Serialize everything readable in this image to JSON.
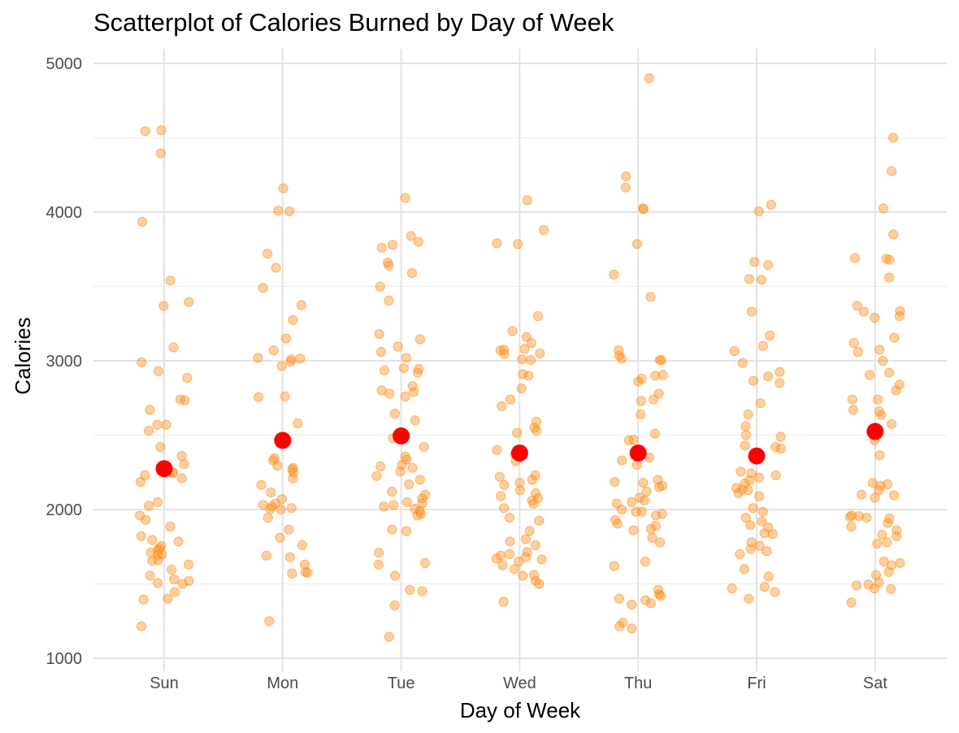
{
  "chart_data": {
    "type": "scatter",
    "title": "Scatterplot of Calories Burned by Day of Week",
    "xlabel": "Day of Week",
    "ylabel": "Calories",
    "categories": [
      "Sun",
      "Mon",
      "Tue",
      "Wed",
      "Thu",
      "Fri",
      "Sat"
    ],
    "ylim": [
      950,
      5050
    ],
    "yticks": [
      1000,
      2000,
      3000,
      4000,
      5000
    ],
    "grid": true,
    "legend": "none",
    "colors": {
      "points": "#ff8c1a",
      "means": "#ff0000"
    },
    "means": [
      2275,
      2465,
      2495,
      2380,
      2380,
      2360,
      2525
    ],
    "series": [
      {
        "category": "Sun",
        "values": [
          4550,
          4545,
          4395,
          3935,
          3540,
          3395,
          3370,
          3090,
          2990,
          2930,
          2885,
          2740,
          2735,
          2670,
          2570,
          2570,
          2530,
          2420,
          2360,
          2305,
          2250,
          2245,
          2230,
          2210,
          2185,
          2050,
          2025,
          1960,
          1930,
          1885,
          1820,
          1795,
          1785,
          1755,
          1740,
          1725,
          1710,
          1700,
          1695,
          1660,
          1655,
          1630,
          1595,
          1555,
          1530,
          1520,
          1505,
          1500,
          1445,
          1400,
          1395,
          1215
        ]
      },
      {
        "category": "Mon",
        "values": [
          4160,
          4010,
          4005,
          3720,
          3625,
          3490,
          3375,
          3275,
          3150,
          3070,
          3020,
          3015,
          3010,
          2995,
          2965,
          2760,
          2755,
          2580,
          2345,
          2330,
          2295,
          2280,
          2270,
          2250,
          2210,
          2165,
          2115,
          2070,
          2040,
          2030,
          2020,
          2010,
          2005,
          2000,
          1945,
          1865,
          1810,
          1760,
          1690,
          1680,
          1630,
          1580,
          1575,
          1570,
          1250
        ]
      },
      {
        "category": "Tue",
        "values": [
          4095,
          3840,
          3800,
          3780,
          3760,
          3660,
          3640,
          3590,
          3500,
          3405,
          3180,
          3145,
          3095,
          3060,
          3020,
          2950,
          2945,
          2935,
          2920,
          2830,
          2800,
          2790,
          2780,
          2760,
          2645,
          2600,
          2480,
          2420,
          2355,
          2335,
          2300,
          2290,
          2280,
          2255,
          2225,
          2200,
          2170,
          2120,
          2100,
          2075,
          2050,
          2040,
          2030,
          2020,
          2005,
          1990,
          1970,
          1960,
          1865,
          1855,
          1710,
          1640,
          1630,
          1555,
          1460,
          1450,
          1355,
          1145
        ]
      },
      {
        "category": "Wed",
        "values": [
          4080,
          3880,
          3790,
          3785,
          3300,
          3200,
          3160,
          3120,
          3080,
          3075,
          3070,
          3050,
          3045,
          3010,
          3005,
          2910,
          2900,
          2815,
          2740,
          2695,
          2590,
          2550,
          2530,
          2515,
          2400,
          2390,
          2370,
          2325,
          2230,
          2220,
          2200,
          2180,
          2165,
          2130,
          2110,
          2090,
          2075,
          2060,
          2040,
          2010,
          1945,
          1925,
          1855,
          1800,
          1785,
          1760,
          1715,
          1700,
          1690,
          1680,
          1670,
          1665,
          1650,
          1625,
          1600,
          1560,
          1555,
          1520,
          1500,
          1380
        ]
      },
      {
        "category": "Thu",
        "values": [
          4900,
          4240,
          4165,
          4025,
          4020,
          3785,
          3580,
          3430,
          3070,
          3035,
          3015,
          3005,
          3005,
          2905,
          2900,
          2880,
          2860,
          2780,
          2740,
          2730,
          2640,
          2510,
          2470,
          2465,
          2350,
          2330,
          2300,
          2200,
          2185,
          2180,
          2160,
          2150,
          2120,
          2080,
          2060,
          2050,
          2040,
          2000,
          1985,
          1985,
          1970,
          1960,
          1930,
          1905,
          1890,
          1870,
          1860,
          1810,
          1780,
          1650,
          1620,
          1460,
          1430,
          1420,
          1400,
          1390,
          1370,
          1360,
          1240,
          1215,
          1200
        ]
      },
      {
        "category": "Fri",
        "values": [
          4050,
          4005,
          3665,
          3645,
          3550,
          3545,
          3330,
          3170,
          3100,
          3065,
          2985,
          2925,
          2895,
          2865,
          2850,
          2715,
          2640,
          2560,
          2500,
          2490,
          2430,
          2420,
          2410,
          2255,
          2245,
          2230,
          2215,
          2195,
          2175,
          2145,
          2135,
          2130,
          2110,
          2090,
          2010,
          1985,
          1945,
          1920,
          1895,
          1880,
          1840,
          1835,
          1780,
          1755,
          1735,
          1720,
          1700,
          1600,
          1550,
          1480,
          1470,
          1445,
          1400
        ]
      },
      {
        "category": "Sat",
        "values": [
          4500,
          4275,
          4025,
          3850,
          3690,
          3685,
          3680,
          3560,
          3370,
          3335,
          3330,
          3300,
          3290,
          3155,
          3120,
          3075,
          3060,
          3000,
          2920,
          2905,
          2840,
          2800,
          2740,
          2740,
          2670,
          2660,
          2635,
          2575,
          2465,
          2365,
          2180,
          2170,
          2160,
          2130,
          2100,
          2095,
          2080,
          1960,
          1955,
          1950,
          1945,
          1940,
          1910,
          1885,
          1860,
          1830,
          1820,
          1780,
          1770,
          1650,
          1640,
          1625,
          1580,
          1560,
          1510,
          1495,
          1490,
          1470,
          1465,
          1375
        ]
      }
    ]
  }
}
